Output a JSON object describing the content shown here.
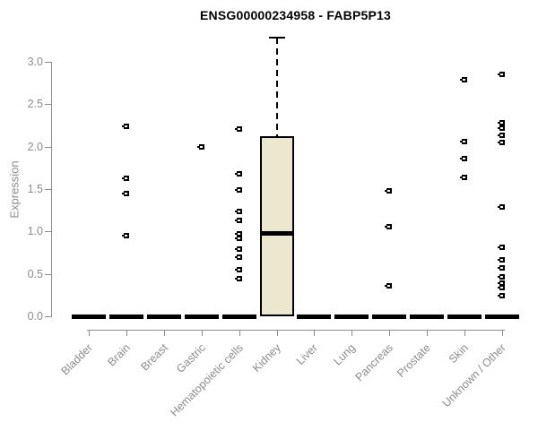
{
  "title": "ENSG00000234958 - FABP5P13",
  "chart_data": {
    "type": "boxplot",
    "title": "ENSG00000234958 - FABP5P13",
    "xlabel": "",
    "ylabel": "Expression",
    "ylim": [
      0,
      3.3
    ],
    "yticks": [
      0,
      0.5,
      1,
      1.5,
      2,
      2.5,
      3
    ],
    "grid": false,
    "legend": false,
    "categories": [
      "Bladder",
      "Brain",
      "Breast",
      "Gastric",
      "Hematopoietic cells",
      "Kidney",
      "Liver",
      "Lung",
      "Pancreas",
      "Prostate",
      "Skin",
      "Unknown / Other"
    ],
    "boxes": [
      {
        "category": "Bladder",
        "whisker_low": 0,
        "q1": 0,
        "median": 0,
        "q3": 0,
        "whisker_high": 0,
        "outliers": []
      },
      {
        "category": "Brain",
        "whisker_low": 0,
        "q1": 0,
        "median": 0,
        "q3": 0,
        "whisker_high": 0,
        "outliers": [
          2.24,
          1.63,
          1.45,
          0.95
        ]
      },
      {
        "category": "Breast",
        "whisker_low": 0,
        "q1": 0,
        "median": 0,
        "q3": 0,
        "whisker_high": 0,
        "outliers": []
      },
      {
        "category": "Gastric",
        "whisker_low": 0,
        "q1": 0,
        "median": 0,
        "q3": 0,
        "whisker_high": 0,
        "outliers": [
          2.0
        ]
      },
      {
        "category": "Hematopoietic cells",
        "whisker_low": 0,
        "q1": 0,
        "median": 0,
        "q3": 0,
        "whisker_high": 0,
        "outliers": [
          2.21,
          1.68,
          1.49,
          1.24,
          1.13,
          0.97,
          0.92,
          0.79,
          0.7,
          0.55,
          0.44
        ]
      },
      {
        "category": "Kidney",
        "whisker_low": 0,
        "q1": 0,
        "median": 0.98,
        "q3": 2.12,
        "whisker_high": 3.28,
        "outliers": []
      },
      {
        "category": "Liver",
        "whisker_low": 0,
        "q1": 0,
        "median": 0,
        "q3": 0,
        "whisker_high": 0,
        "outliers": []
      },
      {
        "category": "Lung",
        "whisker_low": 0,
        "q1": 0,
        "median": 0,
        "q3": 0,
        "whisker_high": 0,
        "outliers": []
      },
      {
        "category": "Pancreas",
        "whisker_low": 0,
        "q1": 0,
        "median": 0,
        "q3": 0,
        "whisker_high": 0,
        "outliers": [
          1.48,
          1.06,
          0.36
        ]
      },
      {
        "category": "Prostate",
        "whisker_low": 0,
        "q1": 0,
        "median": 0,
        "q3": 0,
        "whisker_high": 0,
        "outliers": []
      },
      {
        "category": "Skin",
        "whisker_low": 0,
        "q1": 0,
        "median": 0,
        "q3": 0,
        "whisker_high": 0,
        "outliers": [
          2.79,
          2.06,
          1.86,
          1.64
        ]
      },
      {
        "category": "Unknown / Other",
        "whisker_low": 0,
        "q1": 0,
        "median": 0,
        "q3": 0,
        "whisker_high": 0,
        "outliers": [
          2.85,
          2.28,
          2.22,
          2.13,
          2.05,
          1.29,
          0.81,
          0.67,
          0.57,
          0.46,
          0.39,
          0.34,
          0.24
        ]
      }
    ],
    "colors": {
      "box_fill": "#ece8cf",
      "box_border": "#000000",
      "median": "#000000",
      "outlier": "#000000",
      "axis": "#8c8c8c",
      "tick_label": "#8c8c8c",
      "title": "#000000"
    }
  }
}
